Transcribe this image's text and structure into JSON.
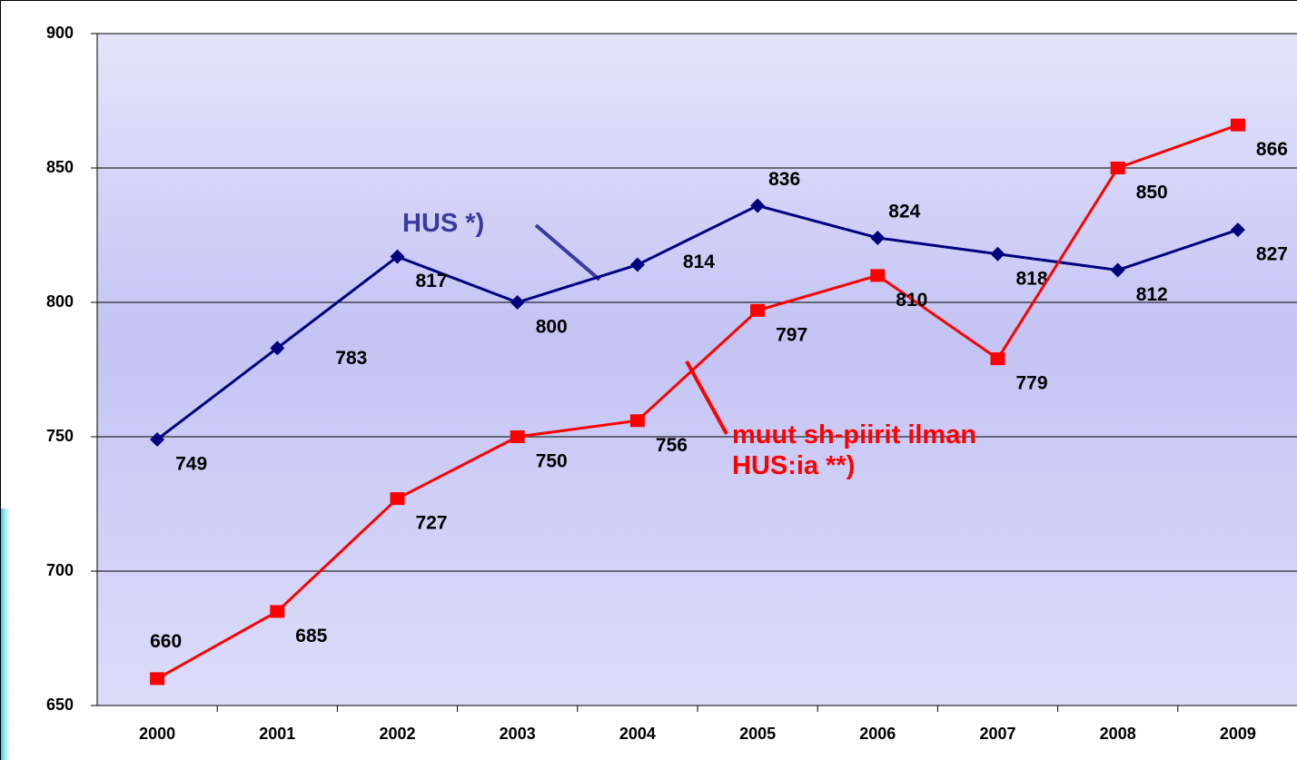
{
  "chart_data": {
    "type": "line",
    "categories": [
      "2000",
      "2001",
      "2002",
      "2003",
      "2004",
      "2005",
      "2006",
      "2007",
      "2008",
      "2009"
    ],
    "series": [
      {
        "name": "HUS *)",
        "color": "#000080",
        "marker": "diamond",
        "values": [
          749,
          783,
          817,
          800,
          814,
          836,
          824,
          818,
          812,
          827
        ]
      },
      {
        "name": "muut sh-piirit ilman HUS:ia **)",
        "color": "#ff0000",
        "marker": "square",
        "values": [
          660,
          685,
          727,
          750,
          756,
          797,
          810,
          779,
          850,
          866
        ]
      }
    ],
    "ylim": [
      650,
      900
    ],
    "yticks": [
      650,
      700,
      750,
      800,
      850,
      900
    ],
    "grid": true
  }
}
